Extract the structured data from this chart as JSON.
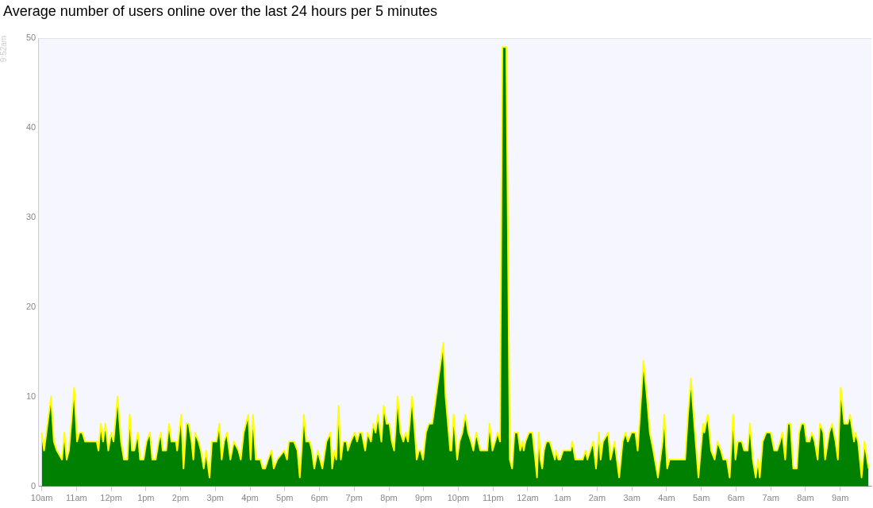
{
  "chart_data": {
    "type": "area",
    "title": "Average number of users online over the last 24 hours per 5 minutes",
    "annotations": [
      "9:52am"
    ],
    "x": [
      "--01-01T10:00",
      "--01-01T10:04",
      "--01-01T10:08",
      "--01-01T10:16",
      "--01-01T10:21",
      "--01-01T10:26",
      "--01-01T10:35",
      "--01-01T10:39",
      "--01-01T10:43",
      "--01-01T10:47",
      "--01-01T10:56",
      "--01-01T11:01",
      "--01-01T11:05",
      "--01-01T11:10",
      "--01-01T11:15",
      "--01-01T11:35",
      "--01-01T11:38",
      "--01-01T11:42",
      "--01-01T11:46",
      "--01-01T11:50",
      "--01-01T11:55",
      "--01-01T12:00",
      "--01-01T12:04",
      "--01-01T12:11",
      "--01-01T12:17",
      "--01-01T12:22",
      "--01-01T12:28",
      "--01-01T12:32",
      "--01-01T12:36",
      "--01-01T12:40",
      "--01-01T12:46",
      "--01-01T12:50",
      "--01-01T12:56",
      "--01-01T13:01",
      "--01-01T13:07",
      "--01-01T13:11",
      "--01-01T13:17",
      "--01-01T13:22",
      "--01-01T13:26",
      "--01-01T13:29",
      "--01-01T13:35",
      "--01-01T13:40",
      "--01-01T13:44",
      "--01-01T13:52",
      "--01-01T13:54",
      "--01-01T14:01",
      "--01-01T14:05",
      "--01-01T14:10",
      "--01-01T14:14",
      "--01-01T14:19",
      "--01-01T14:22",
      "--01-01T14:25",
      "--01-01T14:31",
      "--01-01T14:35",
      "--01-01T14:40",
      "--01-01T14:44",
      "--01-01T14:50",
      "--01-01T14:54",
      "--01-01T15:02",
      "--01-01T15:07",
      "--01-01T15:11",
      "--01-01T15:15",
      "--01-01T15:20",
      "--01-01T15:26",
      "--01-01T15:32",
      "--01-01T15:40",
      "--01-01T15:44",
      "--01-01T15:49",
      "--01-01T15:57",
      "--01-01T16:01",
      "--01-01T16:05",
      "--01-01T16:10",
      "--01-01T16:18",
      "--01-01T16:22",
      "--01-01T16:26",
      "--01-01T16:31",
      "--01-01T16:37",
      "--01-01T16:41",
      "--01-01T16:47",
      "--01-01T16:59",
      "--01-01T17:04",
      "--01-01T17:07",
      "--01-01T17:16",
      "--01-01T17:22",
      "--01-01T17:26",
      "--01-01T17:33",
      "--01-01T17:37",
      "--01-01T17:43",
      "--01-01T17:47",
      "--01-01T17:51",
      "--01-01T17:57",
      "--01-01T18:05",
      "--01-01T18:12",
      "--01-01T18:19",
      "--01-01T18:22",
      "--01-01T18:26",
      "--01-01T18:29",
      "--01-01T18:33",
      "--01-01T18:37",
      "--01-01T18:41",
      "--01-01T18:47",
      "--01-01T18:49",
      "--01-01T18:54",
      "--01-01T19:01",
      "--01-01T19:05",
      "--01-01T19:09",
      "--01-01T19:13",
      "--01-01T19:19",
      "--01-01T19:23",
      "--01-01T19:29",
      "--01-01T19:33",
      "--01-01T19:37",
      "--01-01T19:41",
      "--01-01T19:47",
      "--01-01T19:51",
      "--01-01T19:56",
      "--01-01T20:01",
      "--01-01T20:05",
      "--01-01T20:09",
      "--01-01T20:15",
      "--01-01T20:20",
      "--01-01T20:25",
      "--01-01T20:29",
      "--01-01T20:33",
      "--01-01T20:40",
      "--01-01T20:46",
      "--01-01T20:48",
      "--01-01T20:52",
      "--01-01T20:55",
      "--01-01T20:59",
      "--01-01T21:04",
      "--01-01T21:09",
      "--01-01T21:15",
      "--01-01T21:34",
      "--01-01T21:38",
      "--01-01T21:46",
      "--01-01T21:48",
      "--01-01T21:52",
      "--01-01T21:58",
      "--01-01T22:02",
      "--01-01T22:07",
      "--01-01T22:12",
      "--01-01T22:17",
      "--01-01T22:22",
      "--01-01T22:26",
      "--01-01T22:31",
      "--01-01T22:38",
      "--01-01T22:50",
      "--01-01T22:54",
      "--01-01T22:59",
      "--01-01T23:08",
      "--01-01T23:12",
      "--01-01T23:16",
      "--01-01T23:23",
      "--01-01T23:29",
      "--01-01T23:33",
      "--01-01T23:37",
      "--01-01T23:43",
      "--01-01T23:47",
      "--01-01T23:51",
      "--01-01T23:53",
      "--01-01T23:56",
      "--01-02T00:02",
      "--01-02T00:08",
      "--01-02T00:13",
      "--01-02T00:16",
      "--01-02T00:19",
      "--01-02T00:22",
      "--01-02T00:25",
      "--01-02T00:28",
      "--01-02T00:32",
      "--01-02T00:38",
      "--01-02T00:47",
      "--01-02T00:49",
      "--01-02T00:53",
      "--01-02T00:56",
      "--01-02T01:01",
      "--01-02T01:05",
      "--01-02T01:10",
      "--01-02T01:14",
      "--01-02T01:17",
      "--01-02T01:22",
      "--01-02T01:35",
      "--01-02T01:40",
      "--01-02T01:43",
      "--01-02T01:48",
      "--01-02T01:53",
      "--01-02T01:58",
      "--01-02T02:03",
      "--01-02T02:06",
      "--01-02T02:10",
      "--01-02T02:19",
      "--01-02T02:23",
      "--01-02T02:30",
      "--01-02T02:38",
      "--01-02T02:44",
      "--01-02T02:49",
      "--01-02T02:53",
      "--01-02T02:59",
      "--01-02T03:06",
      "--01-02T03:10",
      "--01-02T03:14",
      "--01-02T03:20",
      "--01-02T03:26",
      "--01-02T03:31",
      "--01-02T03:37",
      "--01-02T03:45",
      "--01-02T03:53",
      "--01-02T03:56",
      "--01-02T04:01",
      "--01-02T04:05",
      "--01-02T04:32",
      "--01-02T04:37",
      "--01-02T04:42",
      "--01-02T04:49",
      "--01-02T04:55",
      "--01-02T05:03",
      "--01-02T05:05",
      "--01-02T05:11",
      "--01-02T05:17",
      "--01-02T05:23",
      "--01-02T05:28",
      "--01-02T05:34",
      "--01-02T05:38",
      "--01-02T05:44",
      "--01-02T05:49",
      "--01-02T05:55",
      "--01-02T05:59",
      "--01-02T06:03",
      "--01-02T06:10",
      "--01-02T06:14",
      "--01-02T06:20",
      "--01-02T06:24",
      "--01-02T06:29",
      "--01-02T06:34",
      "--01-02T06:38",
      "--01-02T06:41",
      "--01-02T06:46",
      "--01-02T06:52",
      "--01-02T07:00",
      "--01-02T07:06",
      "--01-02T07:11",
      "--01-02T07:16",
      "--01-02T07:20",
      "--01-02T07:25",
      "--01-02T07:29",
      "--01-02T07:34",
      "--01-02T07:39",
      "--01-02T07:45",
      "--01-02T07:49",
      "--01-02T07:53",
      "--01-02T07:58",
      "--01-02T08:02",
      "--01-02T08:07",
      "--01-02T08:11",
      "--01-02T08:16",
      "--01-02T08:21",
      "--01-02T08:25",
      "--01-02T08:31",
      "--01-02T08:34",
      "--01-02T08:41",
      "--01-02T08:46",
      "--01-02T08:52",
      "--01-02T08:56",
      "--01-02T09:01",
      "--01-02T09:07",
      "--01-02T09:13",
      "--01-02T09:17",
      "--01-02T09:24",
      "--01-02T09:26",
      "--01-02T09:31",
      "--01-02T09:37",
      "--01-02T09:42",
      "--01-02T09:49"
    ],
    "series": [
      {
        "color": "#008000",
        "values": [
          6,
          4,
          6,
          10,
          5,
          4,
          3,
          6,
          3,
          4,
          11,
          5,
          6,
          6,
          5,
          5,
          4,
          7,
          5,
          7,
          4,
          6,
          5,
          10,
          5,
          3,
          3,
          8,
          4,
          4,
          6,
          3,
          3,
          5,
          6,
          3,
          3,
          5,
          6,
          4,
          4,
          7,
          5,
          5,
          4,
          8,
          2,
          7,
          7,
          5,
          3,
          6,
          5,
          4,
          2,
          4,
          1,
          5,
          5,
          7,
          3,
          5,
          6,
          3,
          5,
          4,
          3,
          6,
          8,
          3,
          8,
          3,
          3,
          2,
          2,
          3,
          4,
          2,
          3,
          4,
          3,
          5,
          5,
          4,
          1,
          8,
          5,
          5,
          4,
          2,
          4,
          2,
          5,
          6,
          2,
          4,
          3,
          9,
          3,
          5,
          5,
          4,
          5,
          6,
          5,
          6,
          6,
          4,
          6,
          5,
          7,
          6,
          8,
          5,
          9,
          7,
          7,
          5,
          4,
          10,
          6,
          5,
          6,
          5,
          10,
          5,
          3,
          4,
          4,
          3,
          6,
          7,
          7,
          16,
          10,
          4,
          4,
          8,
          3,
          5,
          6,
          8,
          6,
          5,
          4,
          6,
          4,
          4,
          7,
          4,
          6,
          5,
          49,
          49,
          3,
          2,
          6,
          6,
          4,
          5,
          4,
          5,
          6,
          6,
          3,
          1,
          6,
          3,
          2,
          4,
          5,
          5,
          3,
          4,
          3,
          3,
          4,
          4,
          4,
          4,
          5,
          3,
          3,
          4,
          3,
          4,
          5,
          2,
          6,
          3,
          5,
          6,
          3,
          5,
          1,
          5,
          6,
          5,
          6,
          6,
          4,
          8,
          14,
          10,
          6,
          4,
          1,
          5,
          8,
          2,
          3,
          3,
          8,
          12,
          6,
          1,
          7,
          6,
          8,
          4,
          3,
          5,
          4,
          3,
          3,
          1,
          8,
          3,
          5,
          5,
          4,
          4,
          7,
          3,
          1,
          3,
          1,
          5,
          6,
          6,
          4,
          4,
          5,
          6,
          3,
          7,
          7,
          2,
          2,
          6,
          7,
          7,
          5,
          5,
          6,
          5,
          3,
          7,
          6,
          3,
          6,
          7,
          5,
          3,
          11,
          7,
          7,
          8,
          5,
          6,
          5,
          1,
          5,
          2
        ]
      }
    ],
    "xlim": [
      "--01-01T09:54",
      "--01-02T09:54"
    ],
    "xticks": [
      {
        "value": "--01-01T10:00",
        "label": "10am"
      },
      {
        "value": "--01-01T11:00",
        "label": "11am"
      },
      {
        "value": "--01-01T12:00",
        "label": "12pm"
      },
      {
        "value": "--01-01T13:00",
        "label": "1pm"
      },
      {
        "value": "--01-01T14:00",
        "label": "2pm"
      },
      {
        "value": "--01-01T15:00",
        "label": "3pm"
      },
      {
        "value": "--01-01T16:00",
        "label": "4pm"
      },
      {
        "value": "--01-01T17:00",
        "label": "5pm"
      },
      {
        "value": "--01-01T18:00",
        "label": "6pm"
      },
      {
        "value": "--01-01T19:00",
        "label": "7pm"
      },
      {
        "value": "--01-01T20:00",
        "label": "8pm"
      },
      {
        "value": "--01-01T21:00",
        "label": "9pm"
      },
      {
        "value": "--01-01T22:00",
        "label": "10pm"
      },
      {
        "value": "--01-01T23:00",
        "label": "11pm"
      },
      {
        "value": "--01-02T00:00",
        "label": "12am"
      },
      {
        "value": "--01-02T01:00",
        "label": "1am"
      },
      {
        "value": "--01-02T02:00",
        "label": "2am"
      },
      {
        "value": "--01-02T03:00",
        "label": "3am"
      },
      {
        "value": "--01-02T04:00",
        "label": "4am"
      },
      {
        "value": "--01-02T05:00",
        "label": "5am"
      },
      {
        "value": "--01-02T06:00",
        "label": "6am"
      },
      {
        "value": "--01-02T07:00",
        "label": "7am"
      },
      {
        "value": "--01-02T08:00",
        "label": "8am"
      },
      {
        "value": "--01-02T09:00",
        "label": "9am"
      }
    ],
    "ylim": [
      0,
      50
    ],
    "yticks": [
      0,
      10,
      20,
      30,
      40,
      50
    ],
    "grid": false,
    "legend": false,
    "marker": "none"
  }
}
